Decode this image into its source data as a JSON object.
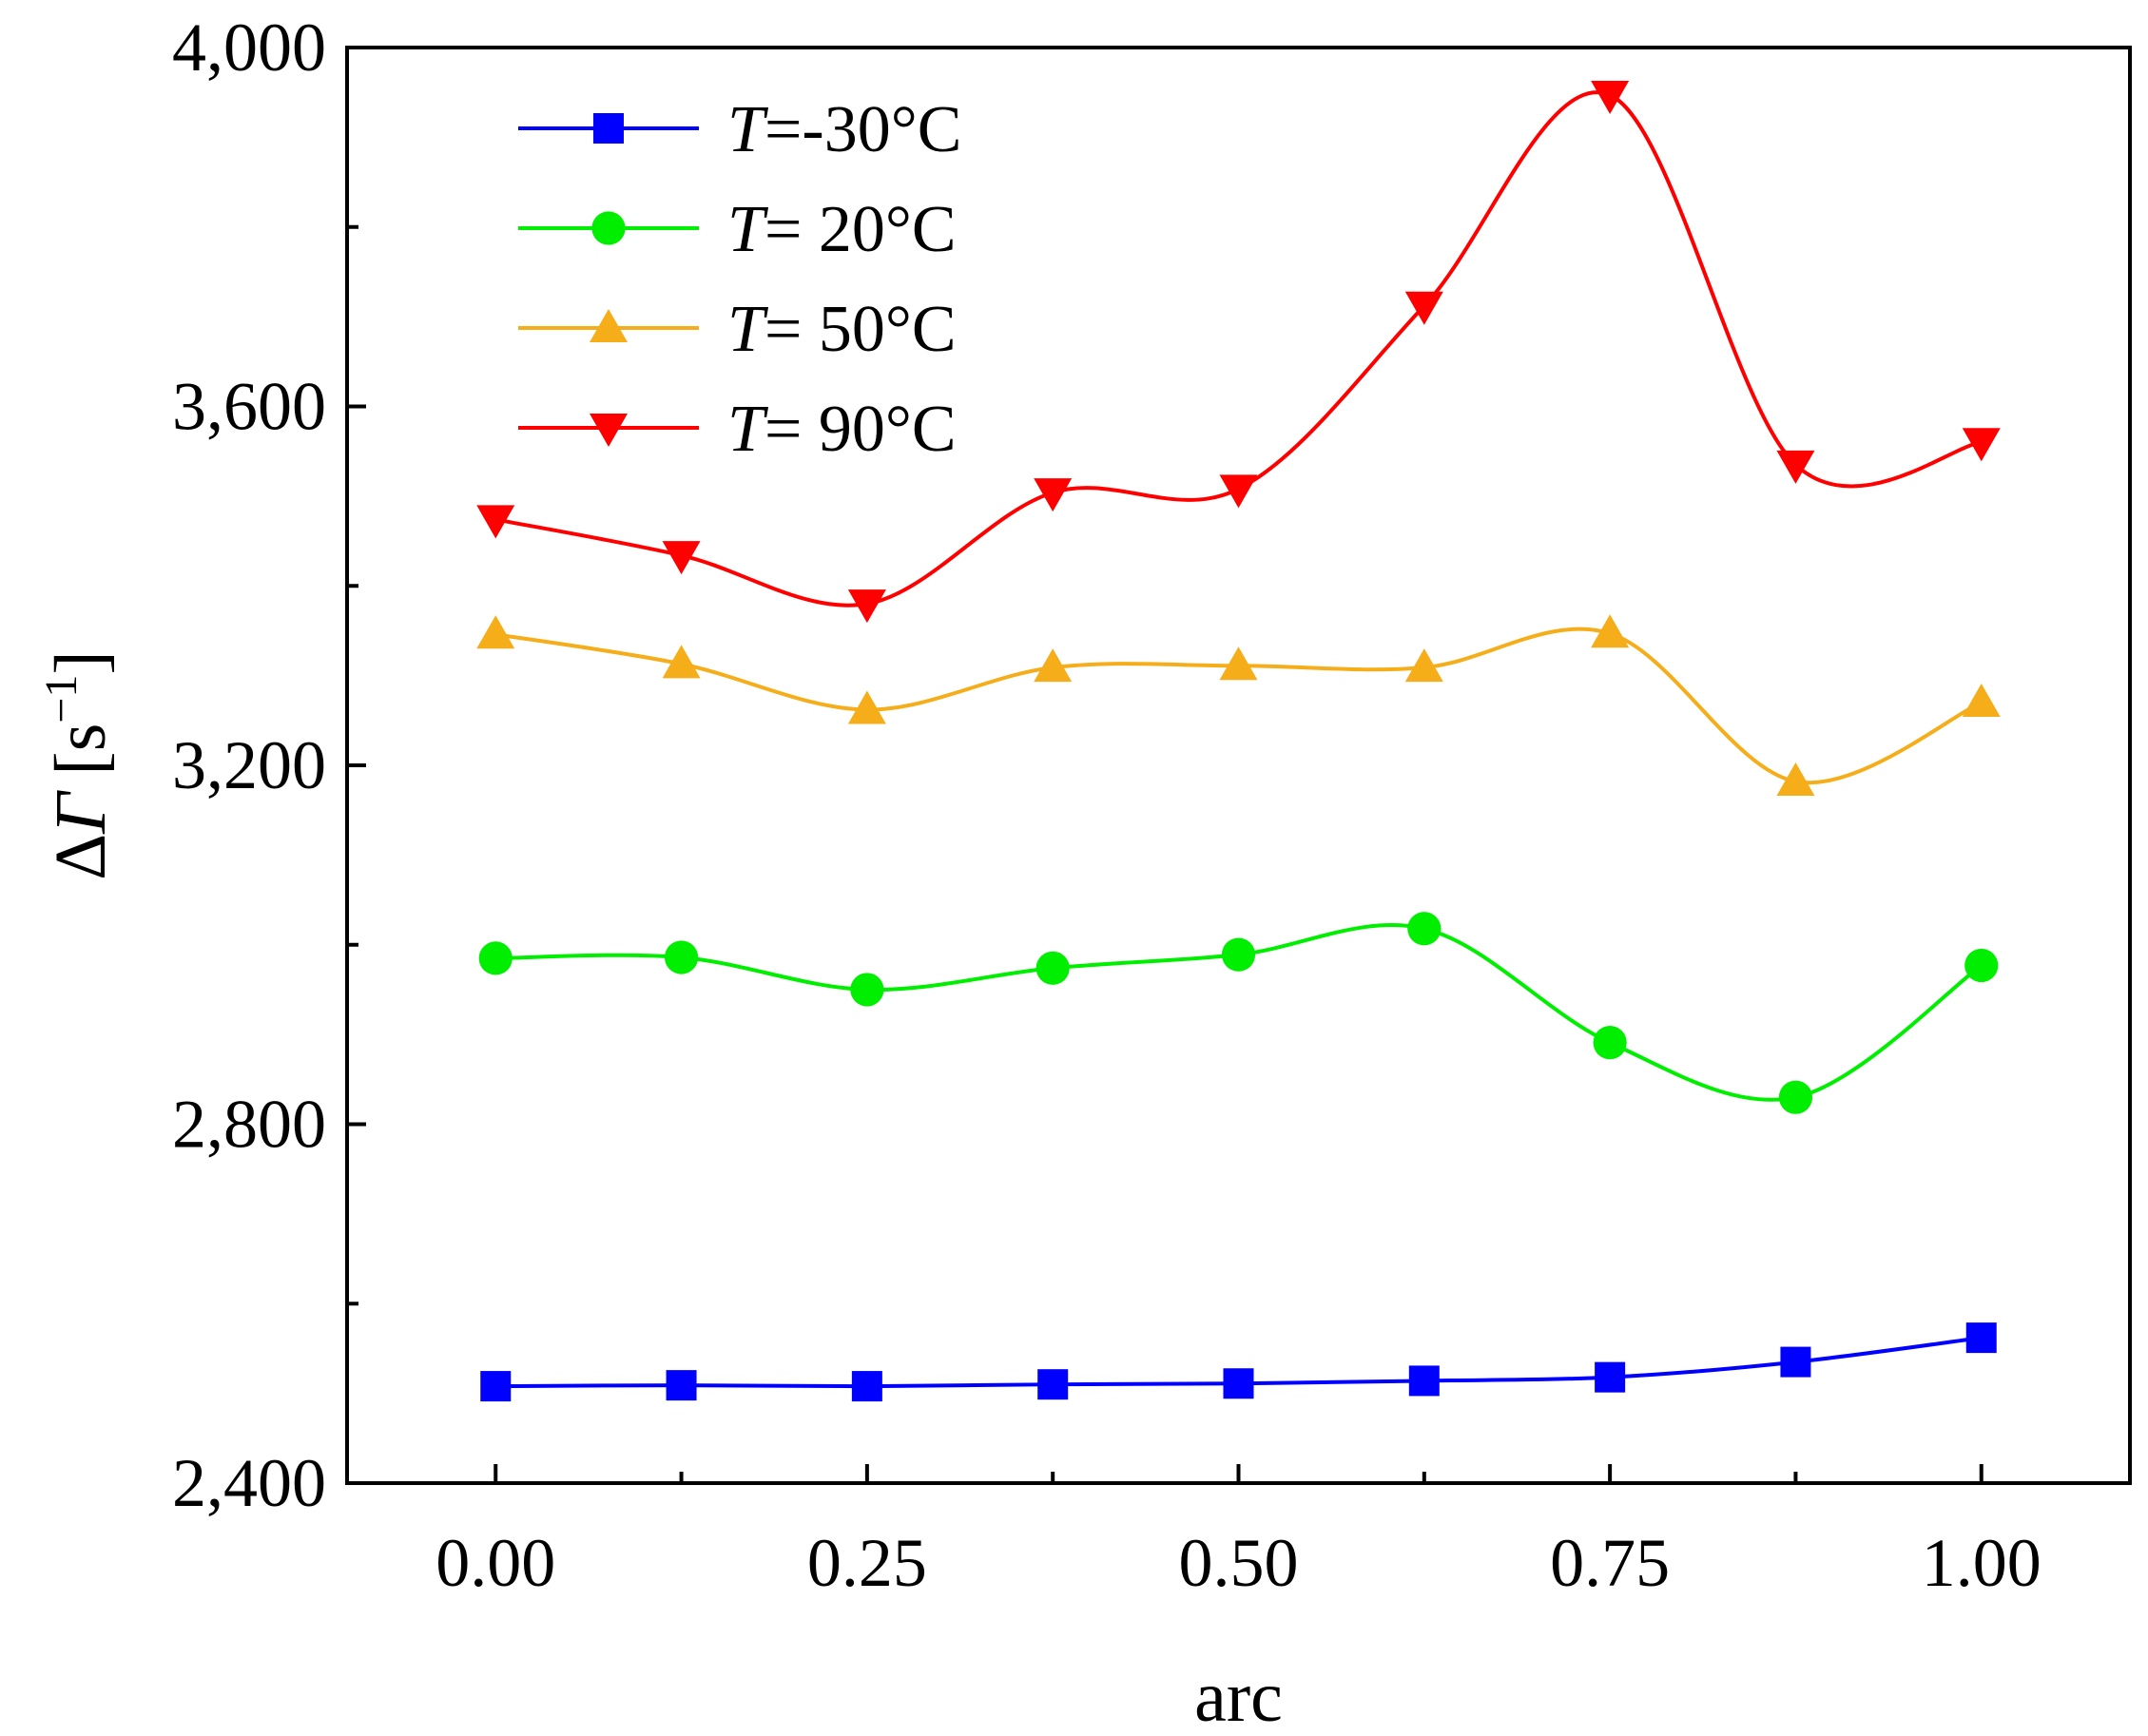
{
  "chart_data": {
    "type": "line",
    "xlabel": "arc",
    "ylabel": "ΔΓ [s⁻¹]",
    "ylabel_parts": {
      "delta": "Δ",
      "symbol": "Γ",
      "unit_open": "[s",
      "sup": "−1",
      "unit_close": "]"
    },
    "xlim": [
      -0.1,
      1.1
    ],
    "ylim": [
      2400,
      4000
    ],
    "x_ticks": [
      "0.00",
      "0.25",
      "0.50",
      "0.75",
      "1.00"
    ],
    "x_tick_values": [
      0,
      0.25,
      0.5,
      0.75,
      1.0
    ],
    "y_ticks": [
      "2,400",
      "2,800",
      "3,200",
      "3,600",
      "4,000"
    ],
    "y_tick_values": [
      2400,
      2800,
      3200,
      3600,
      4000
    ],
    "y_minor_values": [
      2600,
      3000,
      3400,
      3800
    ],
    "x": [
      0,
      0.125,
      0.25,
      0.375,
      0.5,
      0.625,
      0.75,
      0.875,
      1.0
    ],
    "legend_position": "top-left",
    "series": [
      {
        "name": "T=-30°C",
        "label_var": "T",
        "label_rest": "=-30°C",
        "color": "#0000ff",
        "marker": "square",
        "values": [
          2508,
          2509,
          2508,
          2510,
          2511,
          2514,
          2518,
          2535,
          2562
        ]
      },
      {
        "name": "T= 20°C",
        "label_var": "T",
        "label_rest": "= 20°C",
        "color": "#00ee00",
        "marker": "circle",
        "values": [
          2985,
          2986,
          2950,
          2974,
          2989,
          3018,
          2891,
          2830,
          2977
        ]
      },
      {
        "name": "T= 50°C",
        "label_var": "T",
        "label_rest": "= 50°C",
        "color": "#f5ad1a",
        "marker": "triangle-up",
        "values": [
          3346,
          3313,
          3262,
          3309,
          3311,
          3309,
          3347,
          3182,
          3270
        ]
      },
      {
        "name": "T= 90°C",
        "label_var": "T",
        "label_rest": "= 90°C",
        "color": "#ff0000",
        "marker": "triangle-down",
        "values": [
          3474,
          3434,
          3380,
          3504,
          3508,
          3712,
          3947,
          3535,
          3560
        ]
      }
    ]
  }
}
